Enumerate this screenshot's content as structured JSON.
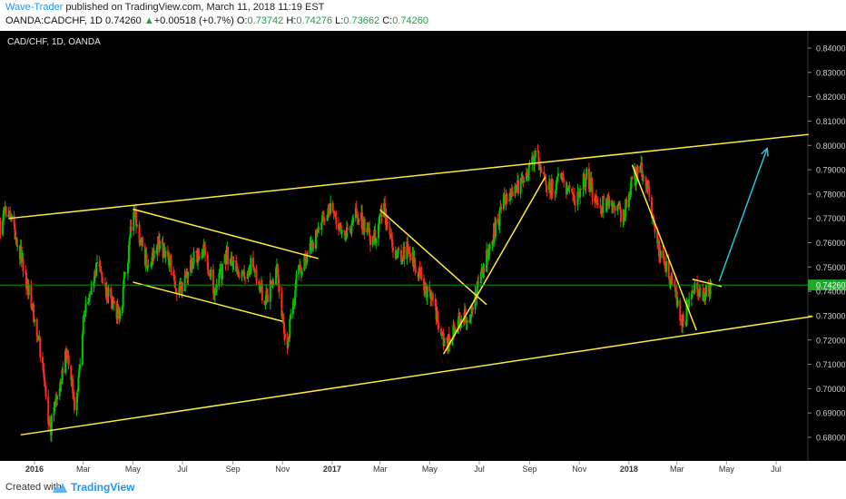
{
  "header": {
    "author": "Wave-Trader",
    "published": " published on TradingView.com, March 11, 2018 11:19 EST",
    "symbol": "OANDA:CADCHF, 1D",
    "last": "0.74260",
    "arrow": "▲",
    "change": "+0.00518 (+0.7%)",
    "o_label": "O:",
    "o_value": "0.73742",
    "h_label": "H:",
    "h_value": "0.74276",
    "l_label": "L:",
    "l_value": "0.73662",
    "c_label": "C:",
    "c_value": "0.74260"
  },
  "footer": {
    "created": "Created with",
    "brand": "TradingView"
  },
  "chart_data": {
    "type": "candlestick",
    "title": "CAD/CHF, 1D, OANDA",
    "current_price": 0.7426,
    "current_price_label": "0.74260",
    "ylim": [
      0.675,
      0.847
    ],
    "y_ticks": [
      "0.68000",
      "0.69000",
      "0.70000",
      "0.71000",
      "0.72000",
      "0.73000",
      "0.74000",
      "0.75000",
      "0.76000",
      "0.77000",
      "0.78000",
      "0.79000",
      "0.80000",
      "0.81000",
      "0.82000",
      "0.83000",
      "0.84000"
    ],
    "x_labels": [
      {
        "label": "2016",
        "t": "2016-01-01",
        "bold": true
      },
      {
        "label": "Mar",
        "t": "2016-03-01"
      },
      {
        "label": "May",
        "t": "2016-05-01"
      },
      {
        "label": "Jul",
        "t": "2016-07-01"
      },
      {
        "label": "Sep",
        "t": "2016-09-01"
      },
      {
        "label": "Nov",
        "t": "2016-11-01"
      },
      {
        "label": "2017",
        "t": "2017-01-01",
        "bold": true
      },
      {
        "label": "Mar",
        "t": "2017-03-01"
      },
      {
        "label": "May",
        "t": "2017-05-01"
      },
      {
        "label": "Jul",
        "t": "2017-07-01"
      },
      {
        "label": "Sep",
        "t": "2017-09-01"
      },
      {
        "label": "Nov",
        "t": "2017-11-01"
      },
      {
        "label": "2018",
        "t": "2018-01-01",
        "bold": true
      },
      {
        "label": "Mar",
        "t": "2018-03-01"
      },
      {
        "label": "May",
        "t": "2018-05-01"
      },
      {
        "label": "Jul",
        "t": "2018-07-01"
      }
    ],
    "price_path": [
      [
        "2015-11-15",
        0.762
      ],
      [
        "2015-11-30",
        0.775
      ],
      [
        "2015-12-15",
        0.755
      ],
      [
        "2015-12-31",
        0.73
      ],
      [
        "2016-01-10",
        0.712
      ],
      [
        "2016-01-20",
        0.683
      ],
      [
        "2016-02-01",
        0.7
      ],
      [
        "2016-02-10",
        0.716
      ],
      [
        "2016-02-20",
        0.692
      ],
      [
        "2016-03-01",
        0.727
      ],
      [
        "2016-03-10",
        0.742
      ],
      [
        "2016-03-20",
        0.751
      ],
      [
        "2016-04-01",
        0.738
      ],
      [
        "2016-04-15",
        0.729
      ],
      [
        "2016-04-25",
        0.755
      ],
      [
        "2016-05-01",
        0.774
      ],
      [
        "2016-05-10",
        0.762
      ],
      [
        "2016-05-20",
        0.748
      ],
      [
        "2016-06-01",
        0.76
      ],
      [
        "2016-06-15",
        0.752
      ],
      [
        "2016-06-25",
        0.738
      ],
      [
        "2016-07-10",
        0.75
      ],
      [
        "2016-07-25",
        0.758
      ],
      [
        "2016-08-10",
        0.74
      ],
      [
        "2016-08-25",
        0.755
      ],
      [
        "2016-09-10",
        0.745
      ],
      [
        "2016-09-25",
        0.752
      ],
      [
        "2016-10-10",
        0.735
      ],
      [
        "2016-10-25",
        0.748
      ],
      [
        "2016-11-01",
        0.728
      ],
      [
        "2016-11-05",
        0.716
      ],
      [
        "2016-11-20",
        0.748
      ],
      [
        "2016-12-10",
        0.76
      ],
      [
        "2016-12-31",
        0.776
      ],
      [
        "2017-01-15",
        0.762
      ],
      [
        "2017-02-01",
        0.772
      ],
      [
        "2017-02-20",
        0.76
      ],
      [
        "2017-03-05",
        0.774
      ],
      [
        "2017-03-20",
        0.754
      ],
      [
        "2017-04-05",
        0.758
      ],
      [
        "2017-04-20",
        0.745
      ],
      [
        "2017-05-05",
        0.735
      ],
      [
        "2017-05-20",
        0.716
      ],
      [
        "2017-06-05",
        0.728
      ],
      [
        "2017-06-20",
        0.73
      ],
      [
        "2017-07-01",
        0.745
      ],
      [
        "2017-07-15",
        0.76
      ],
      [
        "2017-08-01",
        0.778
      ],
      [
        "2017-08-15",
        0.782
      ],
      [
        "2017-09-01",
        0.792
      ],
      [
        "2017-09-10",
        0.795
      ],
      [
        "2017-09-25",
        0.782
      ],
      [
        "2017-10-10",
        0.786
      ],
      [
        "2017-10-25",
        0.778
      ],
      [
        "2017-11-10",
        0.787
      ],
      [
        "2017-11-25",
        0.775
      ],
      [
        "2017-12-10",
        0.778
      ],
      [
        "2017-12-25",
        0.77
      ],
      [
        "2018-01-05",
        0.785
      ],
      [
        "2018-01-15",
        0.792
      ],
      [
        "2018-01-25",
        0.78
      ],
      [
        "2018-02-05",
        0.76
      ],
      [
        "2018-02-15",
        0.75
      ],
      [
        "2018-02-28",
        0.738
      ],
      [
        "2018-03-05",
        0.73
      ],
      [
        "2018-03-10",
        0.726
      ],
      [
        "2018-03-20",
        0.744
      ],
      [
        "2018-04-01",
        0.738
      ],
      [
        "2018-04-12",
        0.7426
      ]
    ],
    "annotations": [
      {
        "kind": "trendline",
        "color": "#ffeb3b",
        "points": [
          [
            "2015-12-01",
            0.77
          ],
          [
            "2018-08-10",
            0.8045
          ]
        ]
      },
      {
        "kind": "trendline",
        "color": "#ffeb3b",
        "points": [
          [
            "2015-12-15",
            0.681
          ],
          [
            "2018-08-15",
            0.7297
          ]
        ]
      },
      {
        "kind": "trendline",
        "color": "#ffeb3b",
        "points": [
          [
            "2016-05-01",
            0.7738
          ],
          [
            "2016-12-15",
            0.7535
          ]
        ]
      },
      {
        "kind": "trendline",
        "color": "#ffeb3b",
        "points": [
          [
            "2016-05-01",
            0.7438
          ],
          [
            "2016-11-01",
            0.7277
          ]
        ]
      },
      {
        "kind": "trendline",
        "color": "#ffeb3b",
        "points": [
          [
            "2017-03-01",
            0.7735
          ],
          [
            "2017-07-10",
            0.7345
          ]
        ]
      },
      {
        "kind": "trendline",
        "color": "#ffeb3b",
        "points": [
          [
            "2017-05-18",
            0.7142
          ],
          [
            "2017-09-20",
            0.787
          ]
        ]
      },
      {
        "kind": "trendline",
        "color": "#ffeb3b",
        "points": [
          [
            "2018-01-05",
            0.792
          ],
          [
            "2018-03-25",
            0.724
          ]
        ]
      },
      {
        "kind": "trendline",
        "color": "#ffeb3b",
        "points": [
          [
            "2018-03-20",
            0.745
          ],
          [
            "2018-04-25",
            0.742
          ]
        ]
      },
      {
        "kind": "arrow",
        "color": "#26c6da",
        "points": [
          [
            "2018-04-22",
            0.7442
          ],
          [
            "2018-06-20",
            0.7988
          ]
        ]
      }
    ],
    "colors": {
      "background": "#000000",
      "up": "#00c800",
      "down": "#ff2a1a",
      "trend": "#ffeb3b",
      "arrow": "#26c6da",
      "price_line": "#00a000",
      "price_label_bg": "#1faa2c"
    }
  }
}
